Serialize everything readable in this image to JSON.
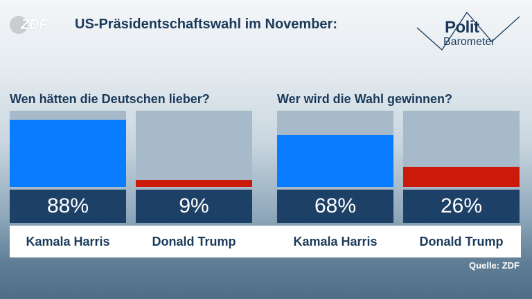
{
  "logo": {
    "text": "ZDF"
  },
  "headline": "US-Präsidentschaftswahl im November:",
  "brand": {
    "line1": "Polit",
    "line2": "Barometer"
  },
  "colors": {
    "harris": "#0a7cff",
    "trump": "#cc1a0a",
    "track": "#a7bac9",
    "value_box": "#1d4166"
  },
  "chart_data": [
    {
      "type": "bar",
      "title": "Wen hätten die Deutschen lieber?",
      "categories": [
        "Kamala Harris",
        "Donald Trump"
      ],
      "values": [
        88,
        9
      ],
      "labels": [
        "88%",
        "9%"
      ],
      "ylim": [
        0,
        100
      ]
    },
    {
      "type": "bar",
      "title": "Wer wird die Wahl gewinnen?",
      "categories": [
        "Kamala Harris",
        "Donald Trump"
      ],
      "values": [
        68,
        26
      ],
      "labels": [
        "68%",
        "26%"
      ],
      "ylim": [
        0,
        100
      ]
    }
  ],
  "source": "Quelle: ZDF"
}
